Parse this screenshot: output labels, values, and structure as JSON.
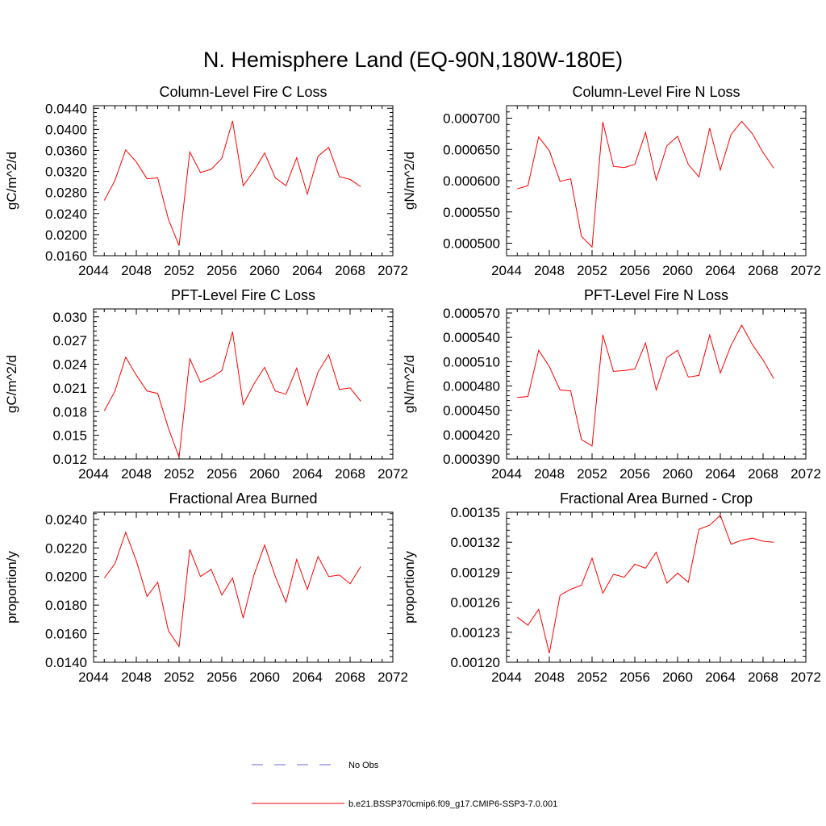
{
  "figure": {
    "title": "N. Hemisphere Land (EQ-90N,180W-180E)"
  },
  "legend": [
    {
      "label": "No Obs",
      "color": "#6b6bd6",
      "style": "dashed"
    },
    {
      "label": "b.e21.BSSP370cmip6.f09_g17.CMIP6-SSP3-7.0.001",
      "color": "#ff0000",
      "style": "solid"
    }
  ],
  "chart_data": [
    {
      "type": "line",
      "title": "Column-Level Fire C Loss",
      "ylabel": "gC/m^2/d",
      "xlim": [
        2044,
        2072
      ],
      "ylim": [
        0.016,
        0.0445
      ],
      "xticks": [
        2044,
        2048,
        2052,
        2056,
        2060,
        2064,
        2068,
        2072
      ],
      "xtick_labels": [
        "2044",
        "2048",
        "2052",
        "2056",
        "2060",
        "2064",
        "2068",
        "2072"
      ],
      "yticks": [
        0.016,
        0.02,
        0.024,
        0.028,
        0.032,
        0.036,
        0.04,
        0.044
      ],
      "ytick_labels": [
        "0.0160",
        "0.0200",
        "0.0240",
        "0.0280",
        "0.0320",
        "0.0360",
        "0.0400",
        "0.0440"
      ],
      "series": [
        {
          "color": "#ff0000",
          "x": [
            2045,
            2046,
            2047,
            2048,
            2049,
            2050,
            2051,
            2052,
            2053,
            2054,
            2055,
            2056,
            2057,
            2058,
            2059,
            2060,
            2061,
            2062,
            2063,
            2064,
            2065,
            2066,
            2067,
            2068,
            2069
          ],
          "y": [
            0.0265,
            0.0303,
            0.0361,
            0.0338,
            0.0306,
            0.0308,
            0.0229,
            0.0179,
            0.0357,
            0.0318,
            0.0324,
            0.0345,
            0.0416,
            0.0293,
            0.0321,
            0.0355,
            0.0308,
            0.0293,
            0.0346,
            0.0277,
            0.0349,
            0.0366,
            0.031,
            0.0305,
            0.0291
          ]
        }
      ]
    },
    {
      "type": "line",
      "title": "Column-Level Fire N Loss",
      "ylabel": "gN/m^2/d",
      "xlim": [
        2044,
        2072
      ],
      "ylim": [
        0.00048,
        0.00072
      ],
      "xticks": [
        2044,
        2048,
        2052,
        2056,
        2060,
        2064,
        2068,
        2072
      ],
      "xtick_labels": [
        "2044",
        "2048",
        "2052",
        "2056",
        "2060",
        "2064",
        "2068",
        "2072"
      ],
      "yticks": [
        0.0005,
        0.00055,
        0.0006,
        0.00065,
        0.0007
      ],
      "ytick_labels": [
        "0.000500",
        "0.000550",
        "0.000600",
        "0.000650",
        "0.000700"
      ],
      "series": [
        {
          "color": "#ff0000",
          "x": [
            2045,
            2046,
            2047,
            2048,
            2049,
            2050,
            2051,
            2052,
            2053,
            2054,
            2055,
            2056,
            2057,
            2058,
            2059,
            2060,
            2061,
            2062,
            2063,
            2064,
            2065,
            2066,
            2067,
            2068,
            2069
          ],
          "y": [
            0.000587,
            0.000592,
            0.00067,
            0.000648,
            0.000599,
            0.000603,
            0.000511,
            0.000494,
            0.000694,
            0.000623,
            0.000621,
            0.000626,
            0.000677,
            0.000601,
            0.000656,
            0.000671,
            0.000626,
            0.000606,
            0.000684,
            0.000617,
            0.000674,
            0.000695,
            0.000675,
            0.000645,
            0.00062
          ]
        }
      ]
    },
    {
      "type": "line",
      "title": "PFT-Level Fire C Loss",
      "ylabel": "gC/m^2/d",
      "xlim": [
        2044,
        2072
      ],
      "ylim": [
        0.012,
        0.031
      ],
      "xticks": [
        2044,
        2048,
        2052,
        2056,
        2060,
        2064,
        2068,
        2072
      ],
      "xtick_labels": [
        "2044",
        "2048",
        "2052",
        "2056",
        "2060",
        "2064",
        "2068",
        "2072"
      ],
      "yticks": [
        0.012,
        0.015,
        0.018,
        0.021,
        0.024,
        0.027,
        0.03
      ],
      "ytick_labels": [
        "0.012",
        "0.015",
        "0.018",
        "0.021",
        "0.024",
        "0.027",
        "0.030"
      ],
      "series": [
        {
          "color": "#ff0000",
          "x": [
            2045,
            2046,
            2047,
            2048,
            2049,
            2050,
            2051,
            2052,
            2053,
            2054,
            2055,
            2056,
            2057,
            2058,
            2059,
            2060,
            2061,
            2062,
            2063,
            2064,
            2065,
            2066,
            2067,
            2068,
            2069
          ],
          "y": [
            0.0181,
            0.0206,
            0.0249,
            0.0226,
            0.0206,
            0.0203,
            0.0159,
            0.0122,
            0.0247,
            0.0217,
            0.0223,
            0.0232,
            0.0281,
            0.0189,
            0.0215,
            0.0236,
            0.0206,
            0.0202,
            0.0235,
            0.0188,
            0.023,
            0.0252,
            0.0208,
            0.021,
            0.0193
          ]
        }
      ]
    },
    {
      "type": "line",
      "title": "PFT-Level Fire N Loss",
      "ylabel": "gN/m^2/d",
      "xlim": [
        2044,
        2072
      ],
      "ylim": [
        0.00039,
        0.000575
      ],
      "xticks": [
        2044,
        2048,
        2052,
        2056,
        2060,
        2064,
        2068,
        2072
      ],
      "xtick_labels": [
        "2044",
        "2048",
        "2052",
        "2056",
        "2060",
        "2064",
        "2068",
        "2072"
      ],
      "yticks": [
        0.00039,
        0.00042,
        0.00045,
        0.00048,
        0.00051,
        0.00054,
        0.00057
      ],
      "ytick_labels": [
        "0.000390",
        "0.000420",
        "0.000450",
        "0.000480",
        "0.000510",
        "0.000540",
        "0.000570"
      ],
      "series": [
        {
          "color": "#ff0000",
          "x": [
            2045,
            2046,
            2047,
            2048,
            2049,
            2050,
            2051,
            2052,
            2053,
            2054,
            2055,
            2056,
            2057,
            2058,
            2059,
            2060,
            2061,
            2062,
            2063,
            2064,
            2065,
            2066,
            2067,
            2068,
            2069
          ],
          "y": [
            0.000466,
            0.000467,
            0.000524,
            0.000504,
            0.000475,
            0.000474,
            0.000414,
            0.000406,
            0.000543,
            0.000498,
            0.000499,
            0.000501,
            0.000533,
            0.000475,
            0.000515,
            0.000524,
            0.000491,
            0.000493,
            0.000543,
            0.000496,
            0.00053,
            0.000555,
            0.000531,
            0.000512,
            0.000489
          ]
        }
      ]
    },
    {
      "type": "line",
      "title": "Fractional Area Burned",
      "ylabel": "proportion/y",
      "xlim": [
        2044,
        2072
      ],
      "ylim": [
        0.014,
        0.0245
      ],
      "xticks": [
        2044,
        2048,
        2052,
        2056,
        2060,
        2064,
        2068,
        2072
      ],
      "xtick_labels": [
        "2044",
        "2048",
        "2052",
        "2056",
        "2060",
        "2064",
        "2068",
        "2072"
      ],
      "yticks": [
        0.014,
        0.016,
        0.018,
        0.02,
        0.022,
        0.024
      ],
      "ytick_labels": [
        "0.0140",
        "0.0160",
        "0.0180",
        "0.0200",
        "0.0220",
        "0.0240"
      ],
      "series": [
        {
          "color": "#ff0000",
          "x": [
            2045,
            2046,
            2047,
            2048,
            2049,
            2050,
            2051,
            2052,
            2053,
            2054,
            2055,
            2056,
            2057,
            2058,
            2059,
            2060,
            2061,
            2062,
            2063,
            2064,
            2065,
            2066,
            2067,
            2068,
            2069
          ],
          "y": [
            0.0199,
            0.0209,
            0.0231,
            0.0211,
            0.0186,
            0.0196,
            0.0162,
            0.0151,
            0.0219,
            0.02,
            0.0205,
            0.0187,
            0.0199,
            0.0171,
            0.0201,
            0.0222,
            0.02,
            0.0182,
            0.0212,
            0.0191,
            0.0214,
            0.02,
            0.0201,
            0.0195,
            0.0207
          ]
        }
      ]
    },
    {
      "type": "line",
      "title": "Fractional Area Burned - Crop",
      "ylabel": "proportion/y",
      "xlim": [
        2044,
        2072
      ],
      "ylim": [
        0.0012,
        0.00135
      ],
      "xticks": [
        2044,
        2048,
        2052,
        2056,
        2060,
        2064,
        2068,
        2072
      ],
      "xtick_labels": [
        "2044",
        "2048",
        "2052",
        "2056",
        "2060",
        "2064",
        "2068",
        "2072"
      ],
      "yticks": [
        0.0012,
        0.00123,
        0.00126,
        0.00129,
        0.00132,
        0.00135
      ],
      "ytick_labels": [
        "0.00120",
        "0.00123",
        "0.00126",
        "0.00129",
        "0.00132",
        "0.00135"
      ],
      "series": [
        {
          "color": "#ff0000",
          "x": [
            2045,
            2046,
            2047,
            2048,
            2049,
            2050,
            2051,
            2052,
            2053,
            2054,
            2055,
            2056,
            2057,
            2058,
            2059,
            2060,
            2061,
            2062,
            2063,
            2064,
            2065,
            2066,
            2067,
            2068,
            2069
          ],
          "y": [
            0.001245,
            0.001237,
            0.001253,
            0.001209,
            0.001267,
            0.001273,
            0.001277,
            0.001304,
            0.001269,
            0.001288,
            0.001285,
            0.001298,
            0.001294,
            0.00131,
            0.001279,
            0.001289,
            0.00128,
            0.001333,
            0.001337,
            0.001347,
            0.001318,
            0.001322,
            0.001324,
            0.001321,
            0.00132
          ]
        }
      ]
    }
  ]
}
